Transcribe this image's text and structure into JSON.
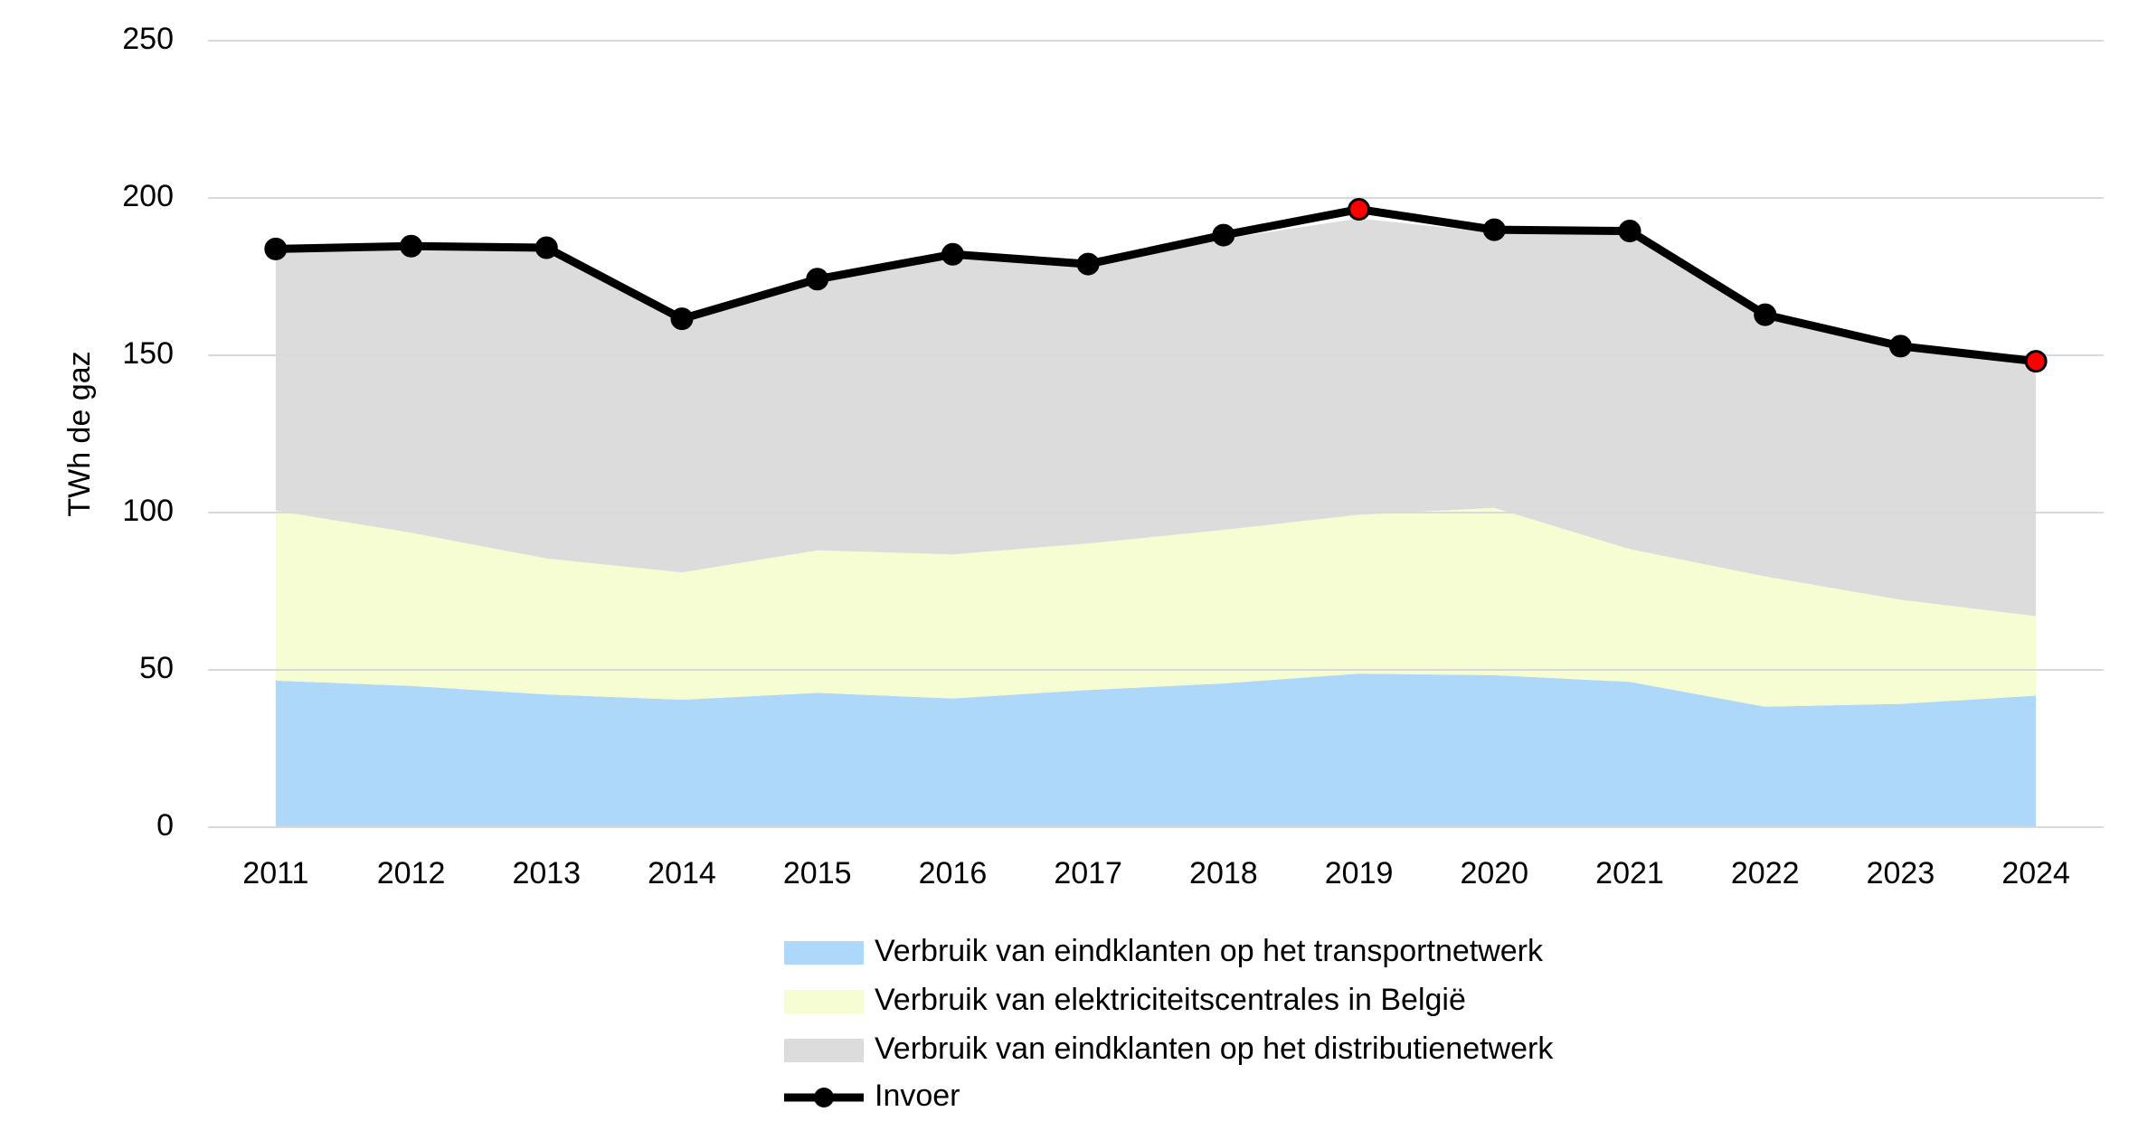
{
  "chart_data": {
    "type": "stacked-area-line",
    "y_label": "TWh de gaz",
    "categories": [
      "2011",
      "2012",
      "2013",
      "2014",
      "2015",
      "2016",
      "2017",
      "2018",
      "2019",
      "2020",
      "2021",
      "2022",
      "2023",
      "2024"
    ],
    "ylim": [
      0,
      250
    ],
    "yticks": [
      0,
      50,
      100,
      150,
      200,
      250
    ],
    "grid": true,
    "series": [
      {
        "name": "Verbruik van eindklanten op het transportnetwerk",
        "type": "area",
        "color": "#add8fa",
        "values": [
          46.6,
          44.9,
          42.2,
          40.5,
          42.7,
          40.9,
          43.6,
          45.7,
          48.8,
          48.3,
          46.2,
          38.3,
          39.2,
          41.8
        ]
      },
      {
        "name": "Verbruik van elektriciteitscentrales in België",
        "type": "area",
        "color": "#f6fdd2",
        "values": [
          54.0,
          48.7,
          43.2,
          40.5,
          45.3,
          45.8,
          46.6,
          48.8,
          50.5,
          53.2,
          42.2,
          41.4,
          33.1,
          25.3
        ]
      },
      {
        "name": "Verbruik van eindklanten op het distributienetwerk",
        "type": "area",
        "color": "#dcdcdc",
        "values": [
          82.4,
          90.4,
          98.1,
          80.0,
          85.0,
          94.3,
          87.8,
          92.5,
          94.2,
          87.5,
          100.1,
          82.3,
          79.7,
          79.9
        ]
      },
      {
        "name": "Invoer",
        "type": "line",
        "color": "#000000",
        "marker_colors": [
          "#000000",
          "#000000",
          "#000000",
          "#000000",
          "#000000",
          "#000000",
          "#000000",
          "#000000",
          "#ff0000",
          "#000000",
          "#000000",
          "#000000",
          "#000000",
          "#ff0000"
        ],
        "values": [
          183.8,
          184.7,
          184.2,
          161.6,
          174.2,
          182.1,
          179.0,
          188.2,
          196.4,
          189.9,
          189.5,
          162.9,
          152.9,
          148.1
        ]
      }
    ]
  }
}
